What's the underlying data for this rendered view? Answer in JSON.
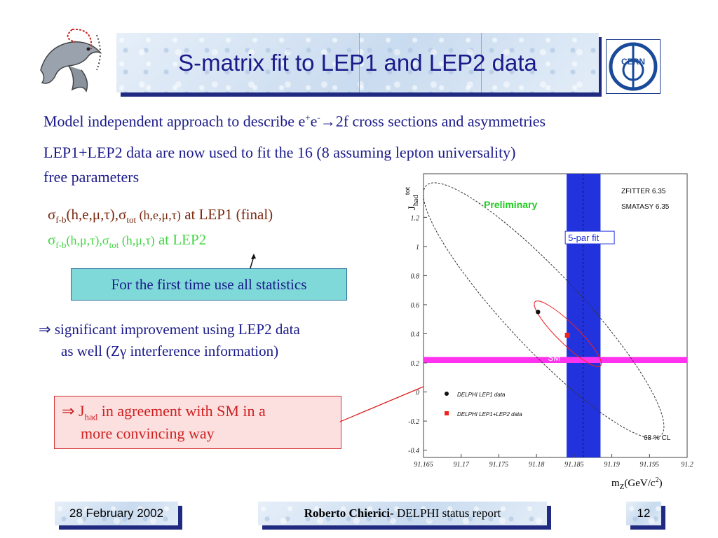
{
  "slide": {
    "title": "S-matrix fit to LEP1 and LEP2 data",
    "line1_pre": "Model independent approach to describe e",
    "line1_sup1": "+",
    "line1_e": "e",
    "line1_sup2": "-",
    "line1_arrow": "→",
    "line1_post": "2f cross sections and asymmetries",
    "line2": "LEP1+LEP2 data are now used to fit the 16 (8 assuming lepton universality)",
    "line3": "free parameters",
    "lep1": {
      "sigma": "σ",
      "sub_fb": "f-b",
      "args1": "(h,e,μ,τ),σ",
      "sub_tot": "tot",
      "args2": " (h,e,μ,τ)",
      "tail": "  at LEP1 (final)"
    },
    "lep2": {
      "sigma": "σ",
      "sub_fb": "f-b",
      "args1": "(h,μ,τ),σ",
      "sub_tot": "tot",
      "args2": " (h,μ,τ)",
      "tail": "  at LEP2"
    },
    "stats_box": "For the first time use all statistics",
    "implies1_sym": "⇒",
    "implies1_l1": "significant improvement using LEP2 data",
    "implies1_l2": "as well (Zγ interference information)",
    "sm_sym": "⇒",
    "sm_J": "J",
    "sm_sub": "had",
    "sm_l1_tail": " in agreement with SM in a",
    "sm_l2": "more convincing way",
    "cern": "CERN",
    "footer_date": "28 February 2002",
    "footer_author": "Roberto Chierici",
    "footer_rest": " - DELPHI status report",
    "page_number": "12"
  },
  "chart_data": {
    "type": "scatter",
    "ylabel_main": "J",
    "ylabel_sub": "had",
    "ylabel_sup": "tot",
    "xlabel_main": "m",
    "xlabel_sub": "Z",
    "xlabel_units": "(GeV/c",
    "xlabel_sup": "2",
    "xlabel_close": ")",
    "xlim": [
      91.165,
      91.2
    ],
    "ylim": [
      -0.45,
      1.5
    ],
    "x_ticks": [
      {
        "v": 91.165,
        "label": "91.165"
      },
      {
        "v": 91.17,
        "label": "91.17"
      },
      {
        "v": 91.175,
        "label": "91.175"
      },
      {
        "v": 91.18,
        "label": "91.18"
      },
      {
        "v": 91.185,
        "label": "91.185"
      },
      {
        "v": 91.19,
        "label": "91.19"
      },
      {
        "v": 91.195,
        "label": "91.195"
      },
      {
        "v": 91.2,
        "label": "91.2"
      }
    ],
    "y_ticks": [
      {
        "v": -0.4,
        "label": "-0.4"
      },
      {
        "v": -0.2,
        "label": "-0.2"
      },
      {
        "v": 0,
        "label": "0"
      },
      {
        "v": 0.2,
        "label": "0.2"
      },
      {
        "v": 0.4,
        "label": "0.4"
      },
      {
        "v": 0.6,
        "label": "0.6"
      },
      {
        "v": 0.8,
        "label": "0.8"
      },
      {
        "v": 1,
        "label": "1"
      },
      {
        "v": 1.2,
        "label": "1.2"
      }
    ],
    "band_5par": {
      "x_min": 91.184,
      "x_max": 91.1885,
      "center": 91.1862,
      "label": "5-par fit",
      "color": "#2233dd"
    },
    "band_sm": {
      "y_min": 0.2,
      "y_max": 0.24,
      "label": "SM",
      "color": "#ff33ee"
    },
    "points": [
      {
        "name": "DELPHI LEP1 data",
        "x": 91.1802,
        "y": 0.55,
        "color": "#111111"
      },
      {
        "name": "DELPHI LEP1+LEP2 data",
        "x": 91.1841,
        "y": 0.39,
        "color": "#ee2222"
      }
    ],
    "ellipse_lep1": {
      "x_min": 91.1654,
      "x_max": 91.1965,
      "y_min": -0.3,
      "y_max": 1.42
    },
    "ellipse_lep2": {
      "x_min": 91.1798,
      "x_max": 91.1885,
      "y_min": 0.18,
      "y_max": 0.62
    },
    "annotations": [
      "Preliminary",
      "ZFITTER 6.35",
      "SMATASY 6.35",
      "68 % CL"
    ],
    "legend_position": "bottom-left",
    "colors": {
      "preliminary": "#22cc22",
      "band_5par": "#2233dd",
      "sm": "#ff33ee",
      "lep2": "#ee2222"
    }
  }
}
